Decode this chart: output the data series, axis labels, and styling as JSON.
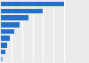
{
  "values": [
    12000,
    8000,
    5200,
    3600,
    2500,
    1700,
    1200,
    850,
    350
  ],
  "bar_color": "#2471c8",
  "last_bar_color": "#7eb0e8",
  "background_color": "#ebebeb",
  "plot_bg_color": "#ebebeb",
  "bar_height": 0.72,
  "xlim": [
    0,
    13000
  ],
  "grid_color": "#ffffff",
  "edge_color": "none",
  "n_bars": 9
}
